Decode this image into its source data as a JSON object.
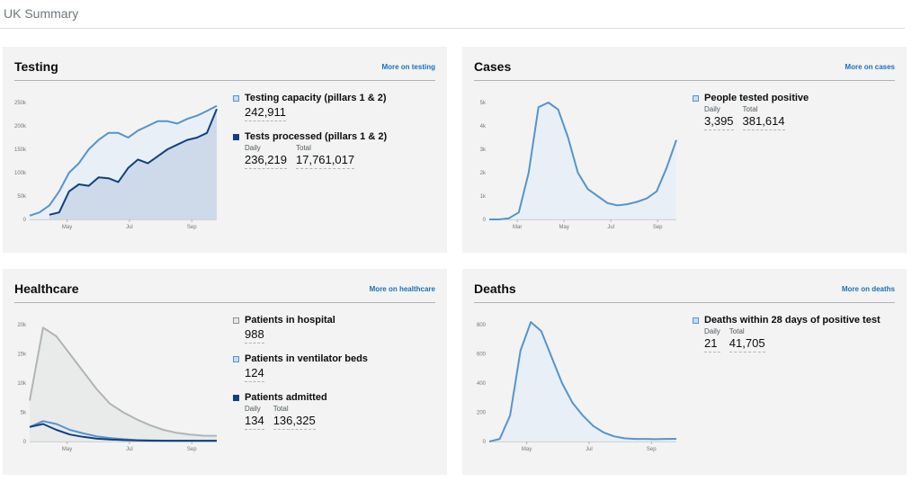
{
  "page": {
    "title": "UK Summary"
  },
  "colors": {
    "light_blue": "#5694ca",
    "dark_blue": "#12407f",
    "grey": "#b1b4b6",
    "fill_light": "#e6edf6",
    "fill_dark": "#c9d6e7",
    "fill_grey": "#e6e7e8",
    "link": "#1d70b8"
  },
  "cards": {
    "testing": {
      "title": "Testing",
      "link": "More on testing",
      "metrics": [
        {
          "label": "Testing capacity (pillars 1 & 2)",
          "value": "242,911",
          "swatch": "light"
        },
        {
          "label": "Tests processed (pillars 1 & 2)",
          "daily_label": "Daily",
          "daily": "236,219",
          "total_label": "Total",
          "total": "17,761,017",
          "swatch": "dark"
        }
      ]
    },
    "cases": {
      "title": "Cases",
      "link": "More on cases",
      "metrics": [
        {
          "label": "People tested positive",
          "daily_label": "Daily",
          "daily": "3,395",
          "total_label": "Total",
          "total": "381,614",
          "swatch": "light"
        }
      ]
    },
    "healthcare": {
      "title": "Healthcare",
      "link": "More on healthcare",
      "metrics": [
        {
          "label": "Patients in hospital",
          "value": "988",
          "swatch": "grey"
        },
        {
          "label": "Patients in ventilator beds",
          "value": "124",
          "swatch": "light"
        },
        {
          "label": "Patients admitted",
          "daily_label": "Daily",
          "daily": "134",
          "total_label": "Total",
          "total": "136,325",
          "swatch": "dark"
        }
      ]
    },
    "deaths": {
      "title": "Deaths",
      "link": "More on deaths",
      "metrics": [
        {
          "label": "Deaths within 28 days of positive test",
          "daily_label": "Daily",
          "daily": "21",
          "total_label": "Total",
          "total": "41,705",
          "swatch": "light"
        }
      ]
    }
  },
  "chart_data": [
    {
      "id": "testing",
      "type": "area",
      "x_ticks": [
        "May",
        "Jul",
        "Sep"
      ],
      "y_ticks": [
        "0",
        "50k",
        "100k",
        "150k",
        "200k",
        "250k"
      ],
      "ylim": [
        0,
        250000
      ],
      "series": [
        {
          "name": "Testing capacity (pillars 1 & 2)",
          "values": [
            8000,
            15000,
            30000,
            60000,
            100000,
            120000,
            150000,
            170000,
            185000,
            185000,
            175000,
            190000,
            200000,
            210000,
            210000,
            205000,
            215000,
            222000,
            232000,
            242911
          ]
        },
        {
          "name": "Tests processed (pillars 1 & 2)",
          "values": [
            null,
            null,
            10000,
            15000,
            60000,
            75000,
            72000,
            90000,
            88000,
            80000,
            110000,
            128000,
            120000,
            135000,
            150000,
            160000,
            170000,
            175000,
            185000,
            236219
          ]
        }
      ]
    },
    {
      "id": "cases",
      "type": "area",
      "x_ticks": [
        "Mar",
        "May",
        "Jul",
        "Sep"
      ],
      "y_ticks": [
        "0",
        "1k",
        "2k",
        "3k",
        "4k",
        "5k"
      ],
      "ylim": [
        0,
        5000
      ],
      "series": [
        {
          "name": "People tested positive",
          "values": [
            0,
            0,
            50,
            300,
            2000,
            4800,
            5000,
            4700,
            3500,
            2000,
            1300,
            1000,
            700,
            600,
            650,
            750,
            900,
            1200,
            2200,
            3395
          ]
        }
      ]
    },
    {
      "id": "healthcare",
      "type": "line",
      "x_ticks": [
        "May",
        "Jul",
        "Sep"
      ],
      "y_ticks": [
        "0",
        "5k",
        "10k",
        "15k",
        "20k"
      ],
      "ylim": [
        0,
        20000
      ],
      "series": [
        {
          "name": "Patients in hospital",
          "values": [
            7000,
            19500,
            18000,
            15000,
            12000,
            9000,
            6500,
            5000,
            3800,
            2800,
            2000,
            1500,
            1200,
            1000,
            988
          ]
        },
        {
          "name": "Patients in ventilator beds",
          "values": [
            2500,
            3500,
            3000,
            2000,
            1400,
            900,
            600,
            400,
            250,
            180,
            150,
            130,
            124,
            124,
            124
          ]
        },
        {
          "name": "Patients admitted",
          "values": [
            2500,
            3000,
            2000,
            1200,
            800,
            500,
            350,
            250,
            180,
            150,
            140,
            135,
            134,
            134,
            134
          ]
        }
      ]
    },
    {
      "id": "deaths",
      "type": "area",
      "x_ticks": [
        "May",
        "Jul",
        "Sep"
      ],
      "y_ticks": [
        "0",
        "200",
        "400",
        "600",
        "800"
      ],
      "ylim": [
        0,
        900
      ],
      "series": [
        {
          "name": "Deaths within 28 days of positive test",
          "values": [
            0,
            20,
            200,
            700,
            920,
            850,
            650,
            450,
            300,
            200,
            120,
            70,
            40,
            25,
            20,
            20,
            18,
            20,
            21
          ]
        }
      ]
    }
  ]
}
